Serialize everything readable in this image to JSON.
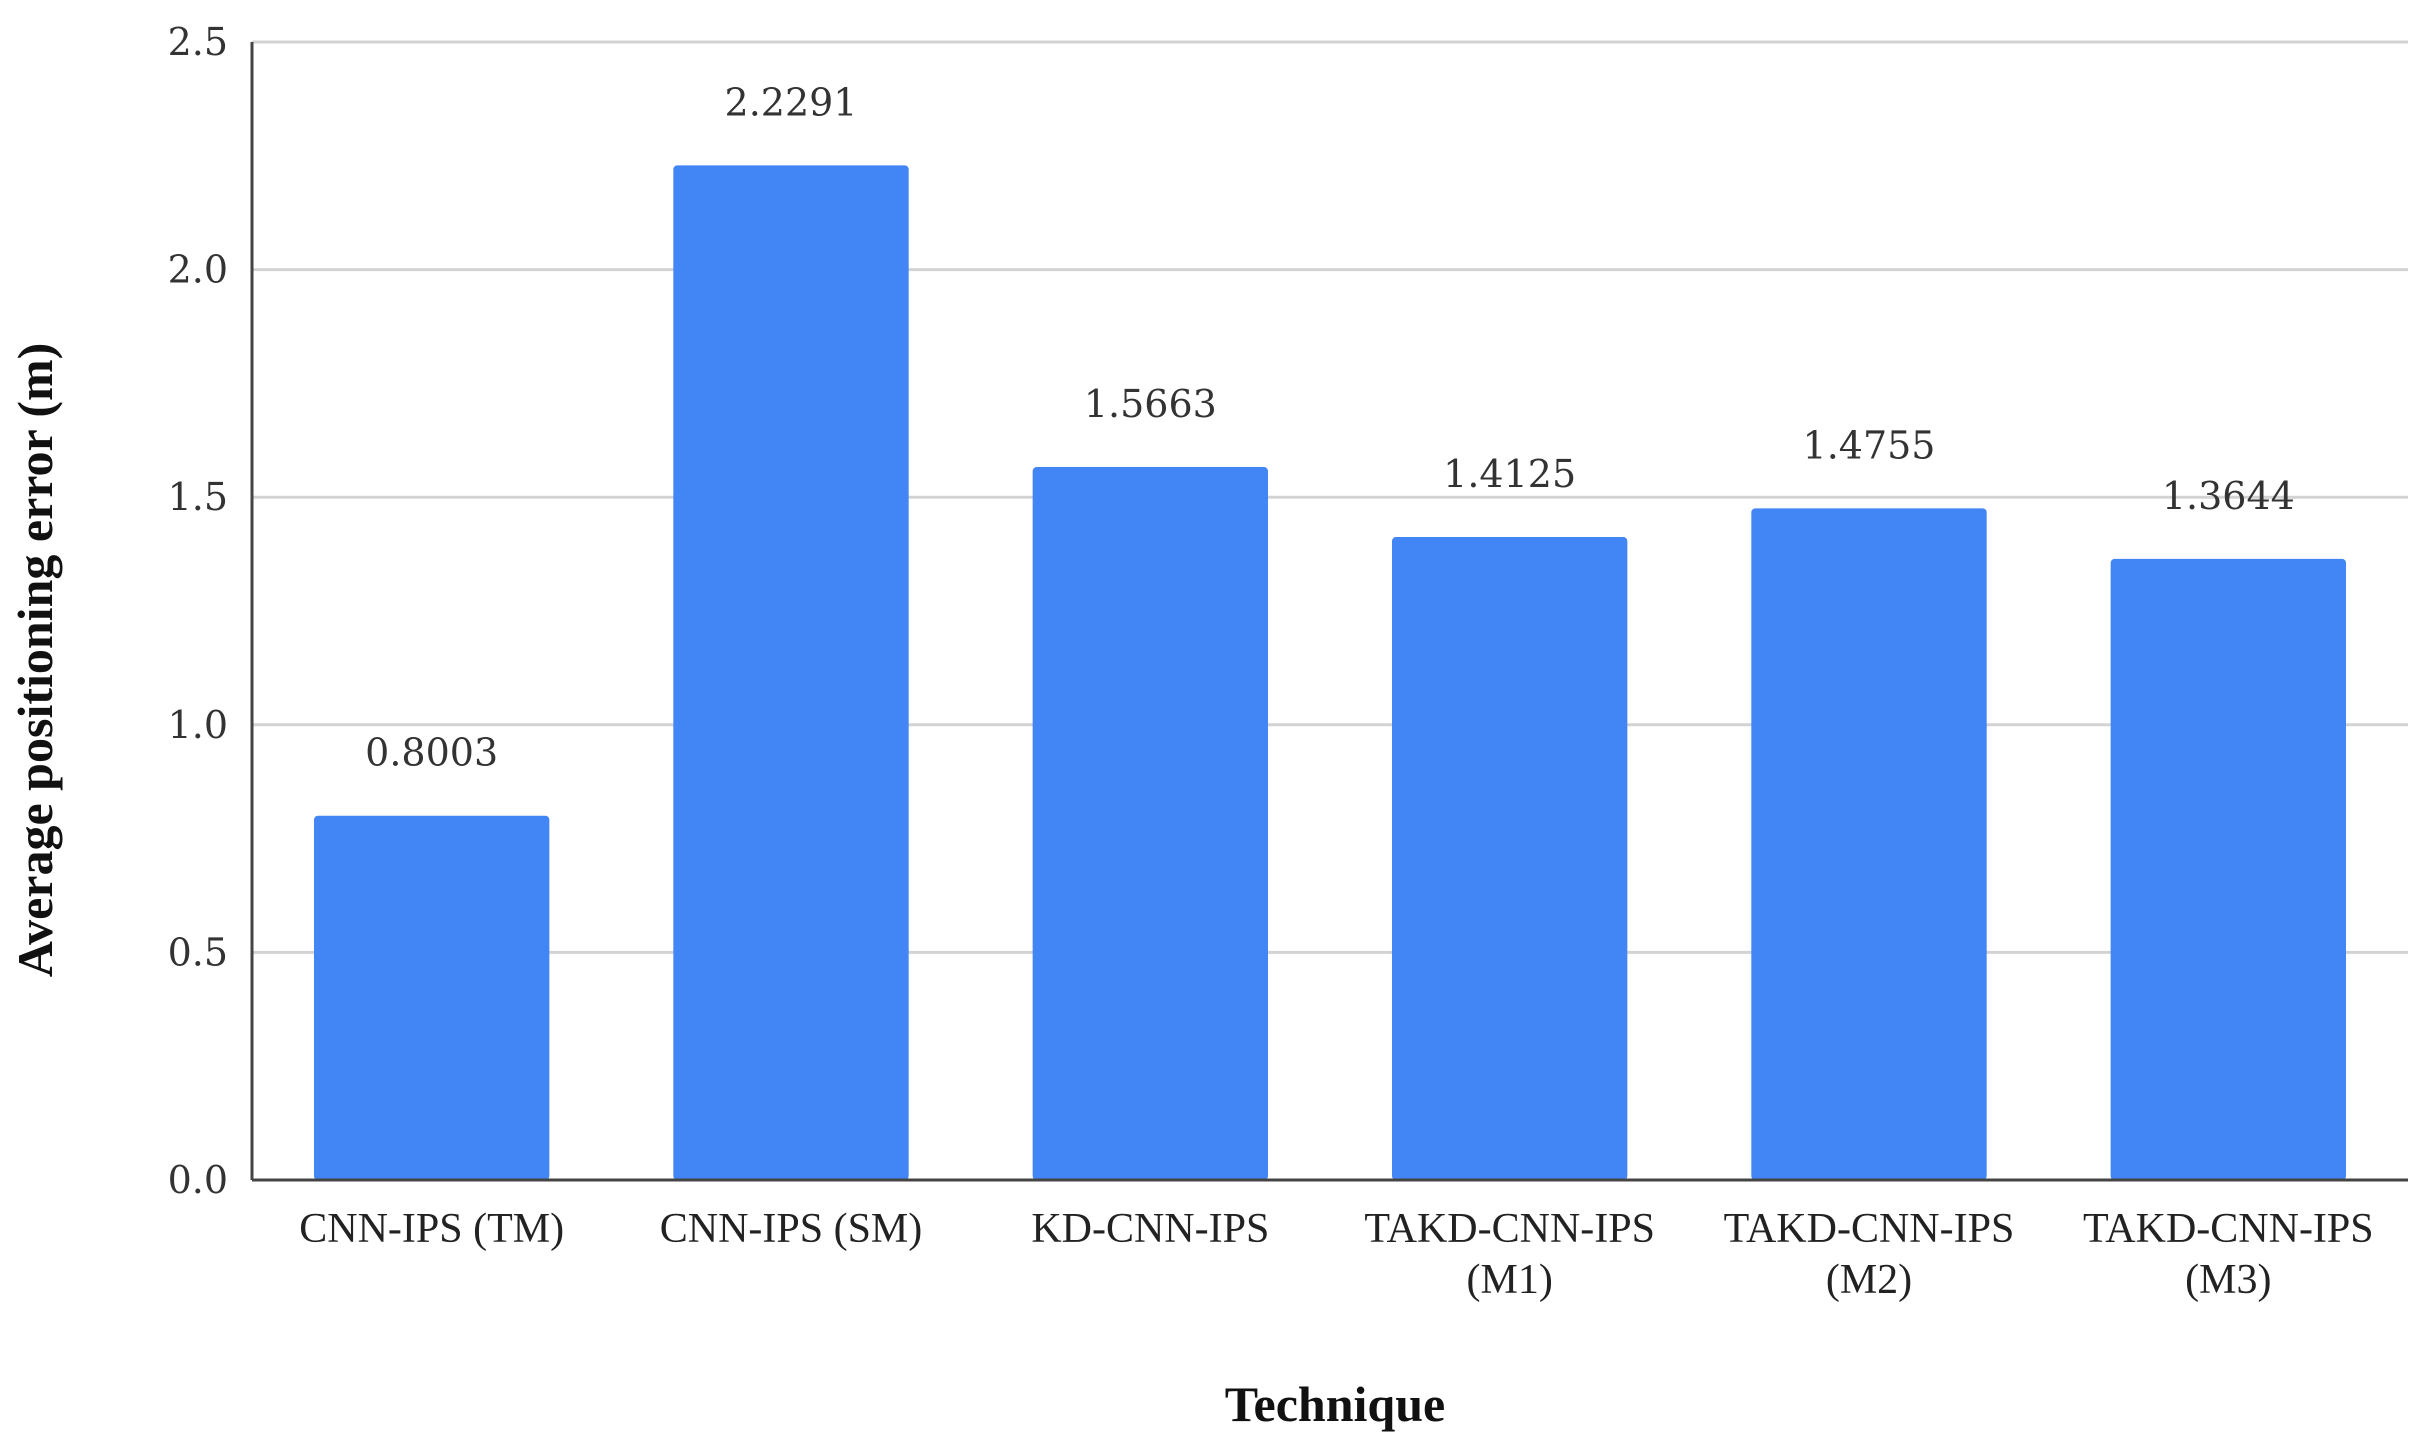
{
  "chart_data": {
    "type": "bar",
    "title": "",
    "xlabel": "Technique",
    "ylabel": "Average positioning error (m)",
    "ylim": [
      0,
      2.5
    ],
    "yticks": [
      "0.0",
      "0.5",
      "1.0",
      "1.5",
      "2.0",
      "2.5"
    ],
    "ytick_values": [
      0,
      0.5,
      1.0,
      1.5,
      2.0,
      2.5
    ],
    "categories": [
      [
        "CNN-IPS (TM)"
      ],
      [
        "CNN-IPS (SM)"
      ],
      [
        "KD-CNN-IPS"
      ],
      [
        "TAKD-CNN-IPS",
        "(M1)"
      ],
      [
        "TAKD-CNN-IPS",
        "(M2)"
      ],
      [
        "TAKD-CNN-IPS",
        "(M3)"
      ]
    ],
    "values": [
      0.8003,
      2.2291,
      1.5663,
      1.4125,
      1.4755,
      1.3644
    ],
    "value_labels": [
      "0.8003",
      "2.2291",
      "1.5663",
      "1.4125",
      "1.4755",
      "1.3644"
    ],
    "grid": true,
    "bar_color": "#4285f4",
    "grid_color": "#d3d3d3",
    "axis_color": "#444444"
  }
}
